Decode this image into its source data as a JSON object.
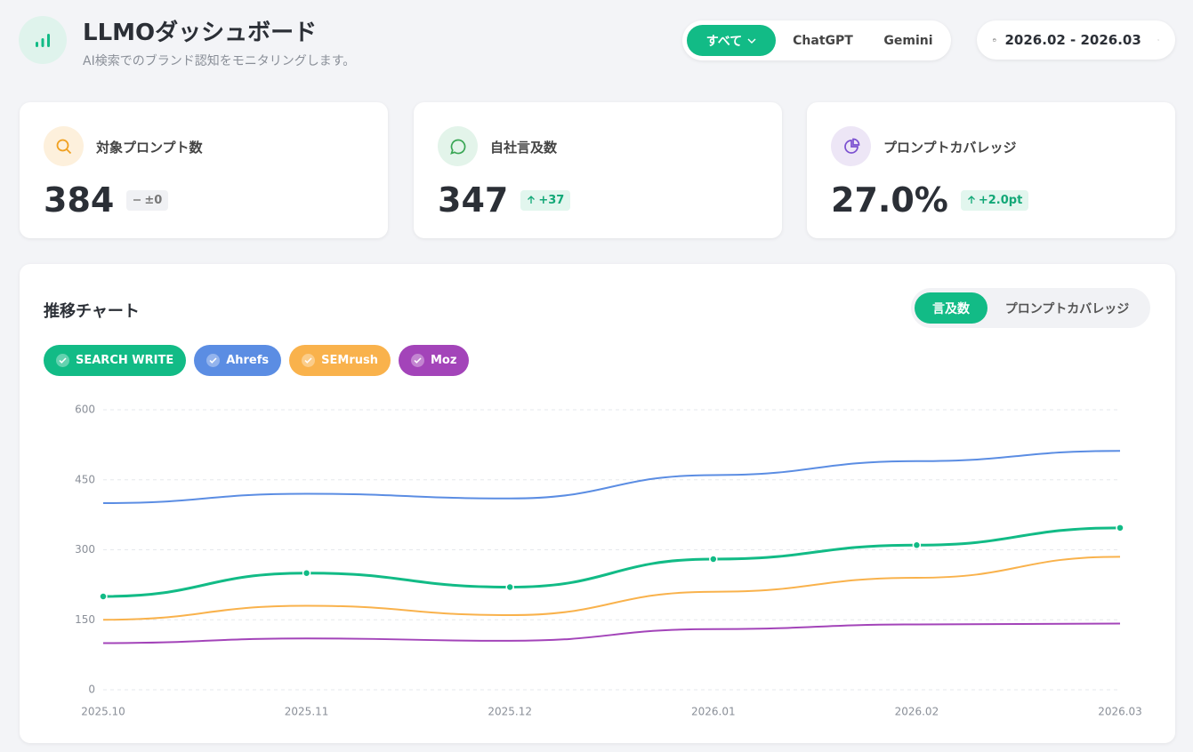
{
  "header": {
    "title": "LLMOダッシュボード",
    "subtitle": "AI検索でのブランド認知をモニタリングします。"
  },
  "filters": {
    "models": [
      "すべて",
      "ChatGPT",
      "Gemini"
    ],
    "period": "2026.02 - 2026.03"
  },
  "cards": [
    {
      "label": "対象プロンプト数",
      "value": "384",
      "change": "±0"
    },
    {
      "label": "自社言及数",
      "value": "347",
      "change": "+37"
    },
    {
      "label": "プロンプトカバレッジ",
      "value": "27.0%",
      "change": "+2.0pt"
    }
  ],
  "chart_tabs": [
    "言及数",
    "プロンプトカバレッジ"
  ],
  "chart_data": {
    "type": "line",
    "title": "推移チャート",
    "categories": [
      "2025.10",
      "2025.11",
      "2025.12",
      "2026.01",
      "2026.02",
      "2026.03"
    ],
    "series": [
      {
        "name": "SEARCH WRITE",
        "color": "#12bb86",
        "values": [
          200,
          250,
          220,
          280,
          310,
          347
        ],
        "markers": true
      },
      {
        "name": "Ahrefs",
        "color": "#5b8de3",
        "values": [
          400,
          420,
          410,
          460,
          490,
          512
        ]
      },
      {
        "name": "SEMrush",
        "color": "#f9b24c",
        "values": [
          150,
          180,
          160,
          210,
          240,
          285
        ]
      },
      {
        "name": "Moz",
        "color": "#a344b9",
        "values": [
          100,
          110,
          105,
          130,
          140,
          142
        ]
      }
    ],
    "ylim": [
      0,
      600
    ],
    "yticks": [
      0,
      150,
      300,
      450,
      600
    ],
    "grid": true
  }
}
